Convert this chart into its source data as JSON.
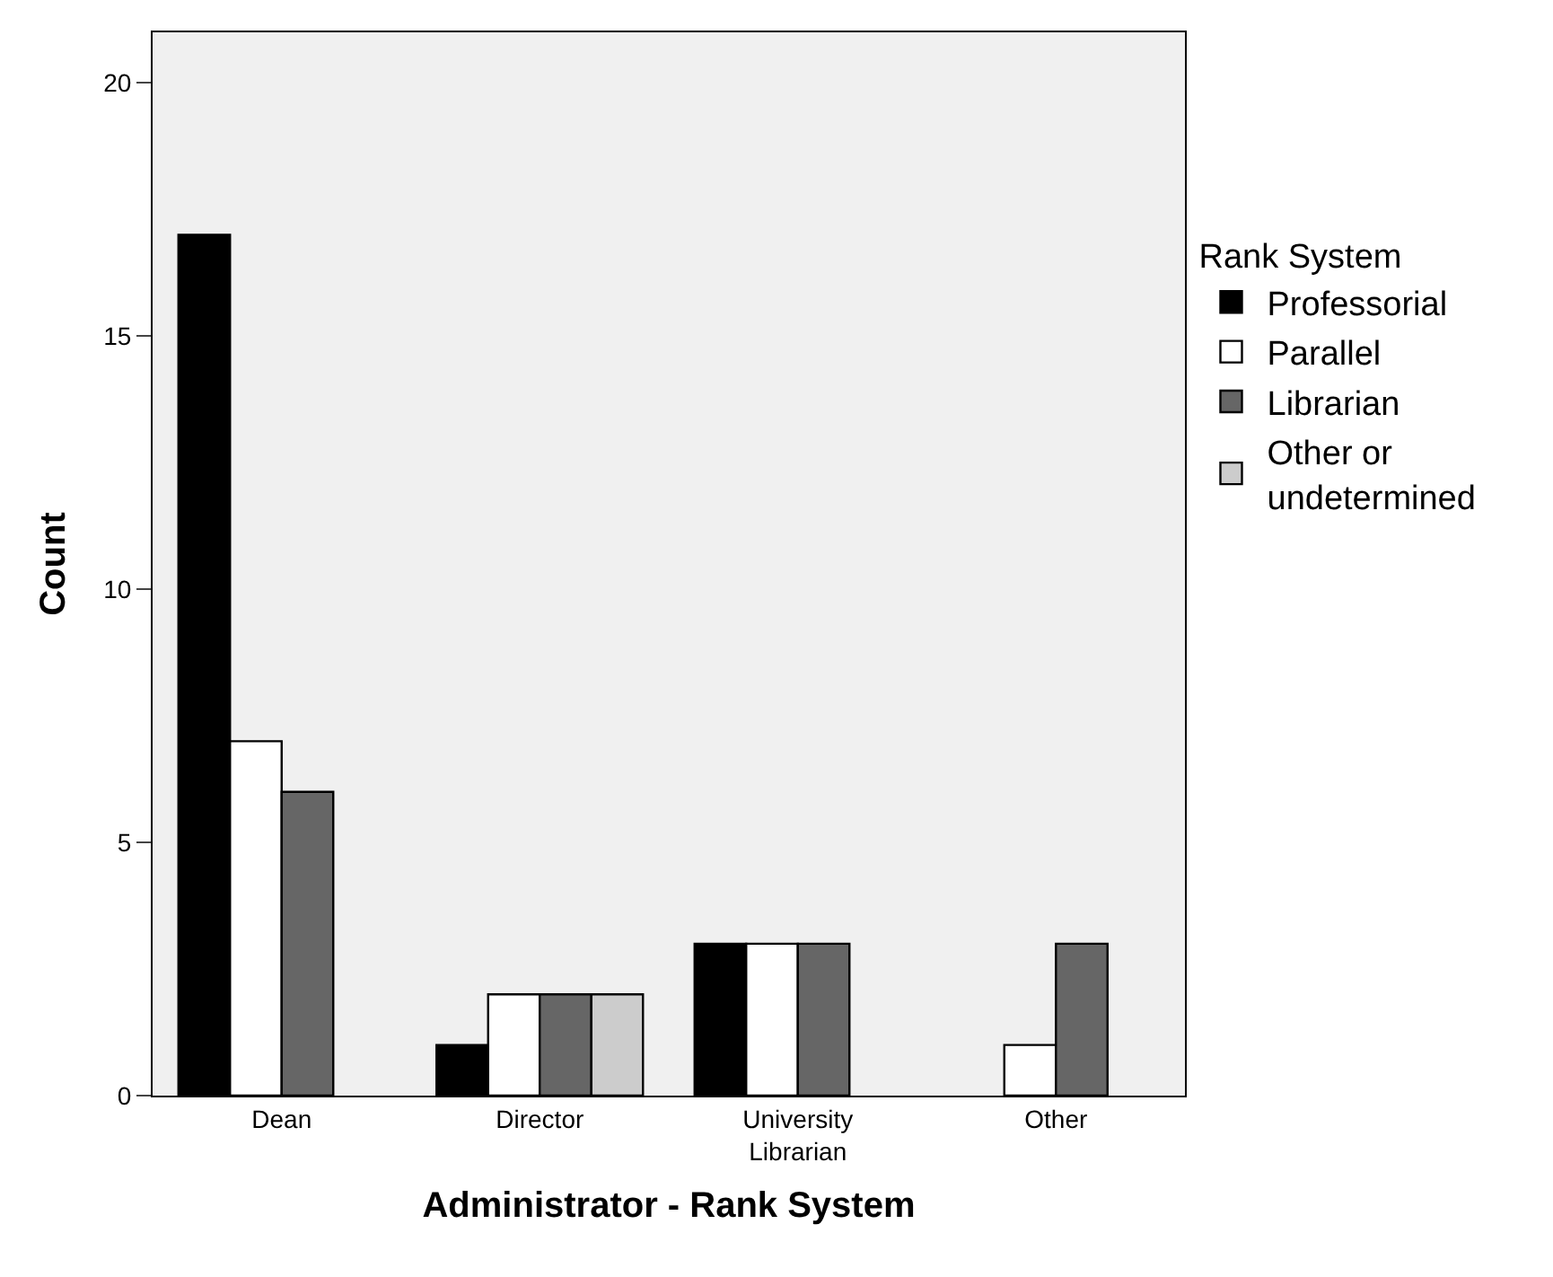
{
  "chart_data": {
    "type": "bar",
    "xlabel": "Administrator - Rank System",
    "ylabel": "Count",
    "legend_title": "Rank System",
    "categories": [
      "Dean",
      "Director",
      "University\nLibrarian",
      "Other"
    ],
    "series": [
      {
        "name": "Professorial",
        "color": "#000000",
        "values": [
          17,
          1,
          3,
          null
        ]
      },
      {
        "name": "Parallel",
        "color": "#ffffff",
        "values": [
          7,
          2,
          3,
          1
        ]
      },
      {
        "name": "Librarian",
        "color": "#666666",
        "values": [
          6,
          2,
          3,
          3
        ]
      },
      {
        "name": "Other or\nundetermined",
        "color": "#cccccc",
        "values": [
          null,
          2,
          null,
          null
        ]
      }
    ],
    "ylim": [
      0,
      21
    ],
    "yticks": [
      0,
      5,
      10,
      15,
      20
    ],
    "grid": false,
    "legend": "right"
  }
}
